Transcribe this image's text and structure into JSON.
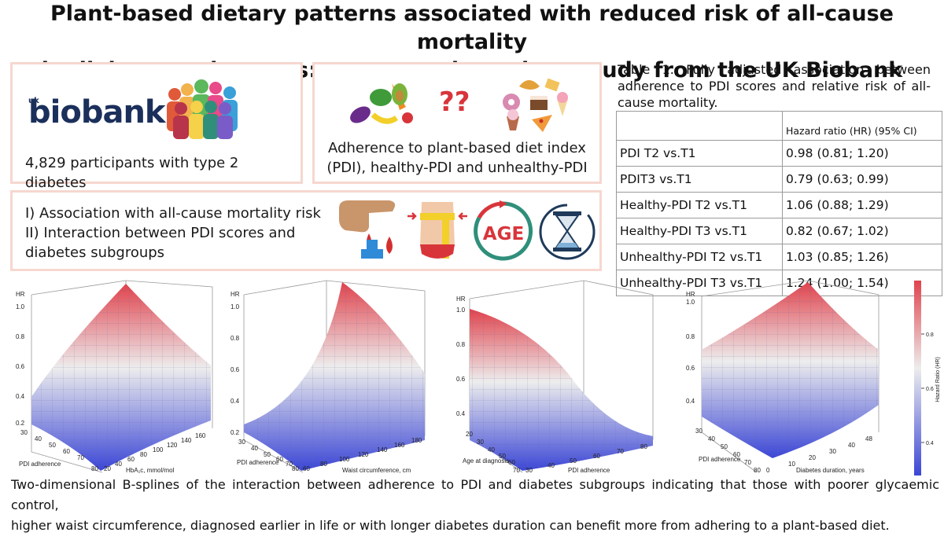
{
  "title": {
    "line1": "Plant-based dietary patterns associated with reduced risk of all-cause mortality",
    "line2": "in diabetes subgroups: a prospective cohort study from the UK Biobank"
  },
  "participants_box": {
    "logo_small": "uk",
    "logo_big": "biobank",
    "text": "4,829 participants with type 2 diabetes"
  },
  "diet_box": {
    "question": "??",
    "line1": "Adherence to plant-based diet index",
    "line2": "(PDI), healthy-PDI and unhealthy-PDI"
  },
  "aims_box": {
    "line1": "I) Association with all-cause mortality risk",
    "line2": "II) Interaction between PDI scores and",
    "line3": "diabetes subgroups",
    "age_label": "AGE"
  },
  "table": {
    "caption": "Table 1. Fully adjusted association between adherence to PDI scores and relative risk of all-cause mortality.",
    "header": "Hazard ratio (HR) (95% CI)",
    "rows": [
      {
        "label": "PDI T2 vs.T1",
        "value": "0.98 (0.81; 1.20)"
      },
      {
        "label": "PDIT3 vs.T1",
        "value": "0.79 (0.63; 0.99)"
      },
      {
        "label": "Healthy-PDI T2 vs.T1",
        "value": "1.06 (0.88; 1.29)"
      },
      {
        "label": "Healthy-PDI T3 vs.T1",
        "value": "0.82 (0.67; 1.02)"
      },
      {
        "label": "Unhealthy-PDI T2 vs.T1",
        "value": "1.03 (0.85; 1.26)"
      },
      {
        "label": "Unhealthy-PDI T3 vs.T1",
        "value": "1.24 (1.00; 1.54)"
      }
    ]
  },
  "plots": {
    "p1": {
      "zlabel": "HR",
      "zticks": [
        "1.0",
        "0.8",
        "0.6",
        "0.4",
        "0.2"
      ],
      "xlabel": "PDI adherence",
      "xticks": [
        "30",
        "40",
        "50",
        "60",
        "70",
        "80"
      ],
      "ylabel": "HbA₁c, mmol/mol",
      "yticks": [
        "20",
        "40",
        "60",
        "80",
        "100",
        "120",
        "140",
        "160"
      ]
    },
    "p2": {
      "zlabel": "HR",
      "zticks": [
        "1.0",
        "0.8",
        "0.6",
        "0.4",
        "0.2"
      ],
      "xlabel": "PDI adherence",
      "xticks": [
        "30",
        "40",
        "50",
        "60",
        "70",
        "80"
      ],
      "ylabel": "Waist circumference, cm",
      "yticks": [
        "60",
        "80",
        "100",
        "120",
        "140",
        "160",
        "180"
      ]
    },
    "p3": {
      "zlabel": "HR",
      "zticks": [
        "1.0",
        "0.8",
        "0.6",
        "0.4"
      ],
      "xlabel": "Age at diagnosis",
      "xticks": [
        "20",
        "30",
        "40",
        "50",
        "60",
        "70"
      ],
      "ylabel": "PDI adherence",
      "yticks": [
        "30",
        "40",
        "50",
        "60",
        "70",
        "80"
      ]
    },
    "p4": {
      "zlabel": "HR",
      "zticks": [
        "1.0",
        "0.8",
        "0.6",
        "0.4"
      ],
      "xlabel": "PDI adherence",
      "xticks": [
        "30",
        "40",
        "50",
        "60",
        "70",
        "80"
      ],
      "ylabel": "Diabetes duration, years",
      "yticks": [
        "0",
        "10",
        "20",
        "30",
        "40",
        "48"
      ]
    }
  },
  "colorbar": {
    "label": "Hazard Ratio (HR)",
    "ticks": [
      "0.8",
      "0.6",
      "0.4"
    ]
  },
  "caption": {
    "line1": "Two-dimensional B-splines of the interaction between adherence to PDI and diabetes subgroups indicating that those with poorer glycaemic control,",
    "line2": "higher waist circumference, diagnosed earlier in life or with longer diabetes duration can benefit more from adhering to a plant-based diet."
  },
  "colors": {
    "box_border": "#f6d7cf",
    "hr_high": "#e0434d",
    "hr_mid": "#ededed",
    "hr_low": "#3b46d6"
  }
}
